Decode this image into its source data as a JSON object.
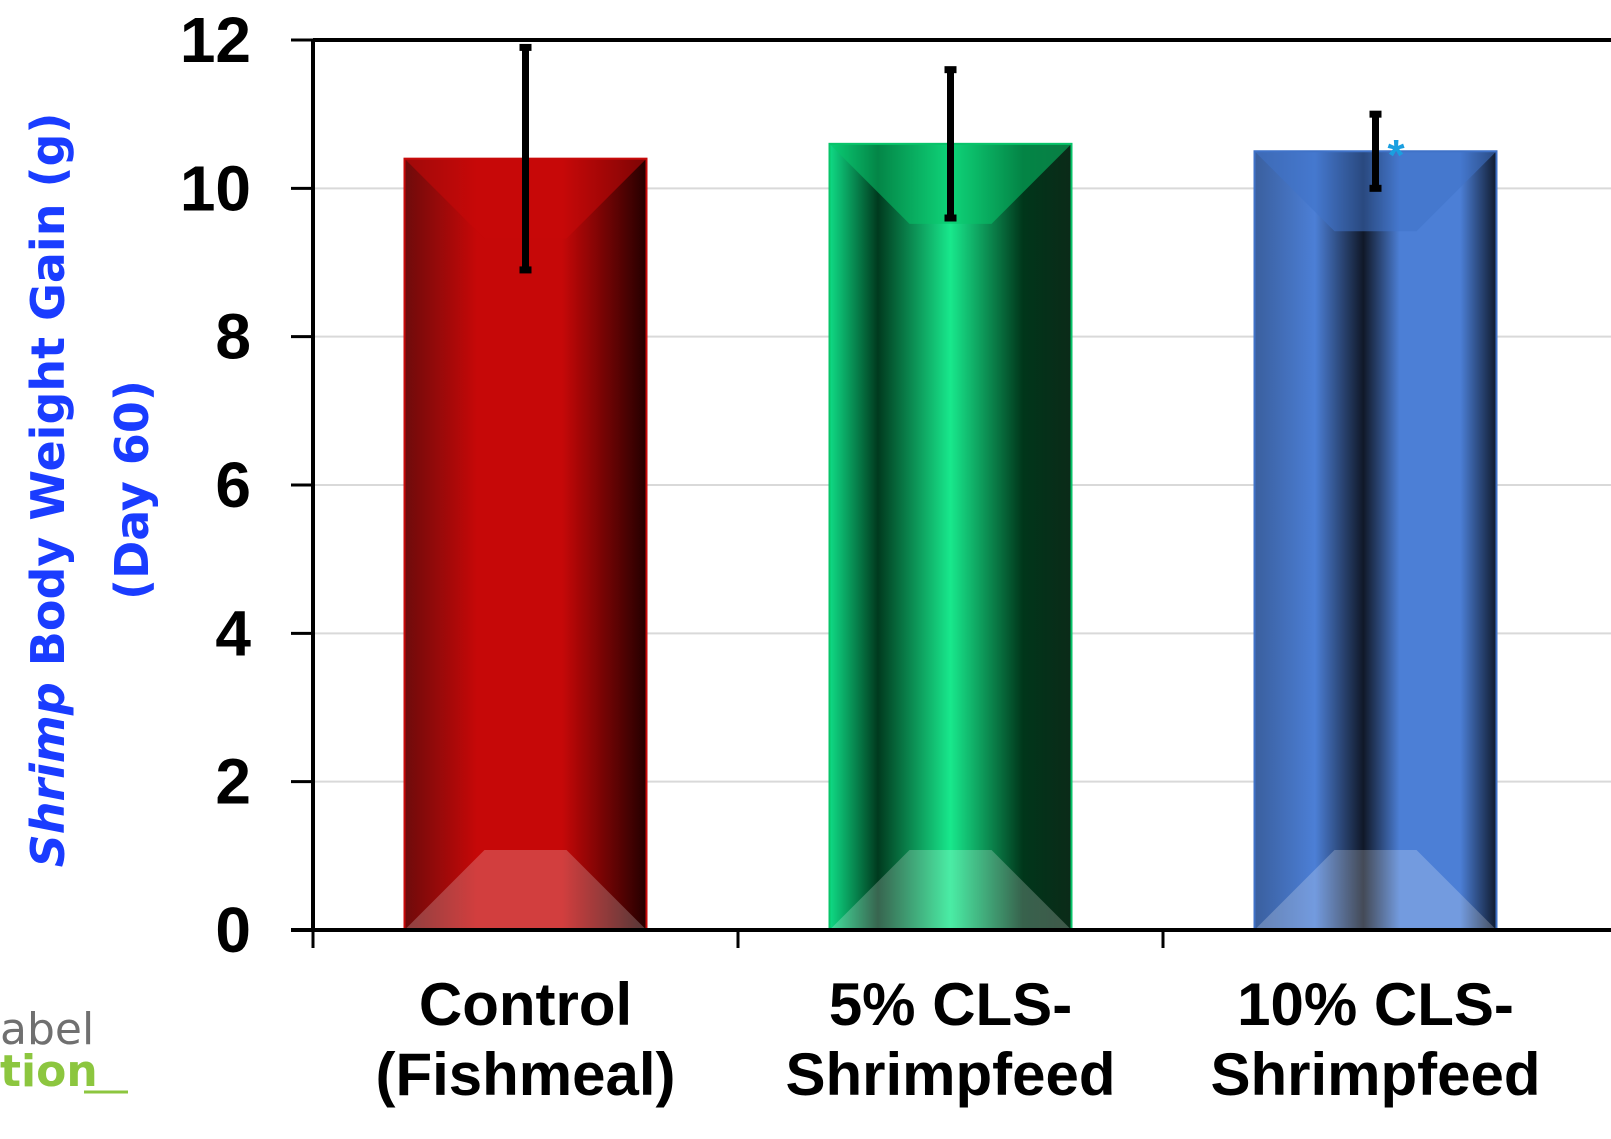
{
  "chart_data": {
    "type": "bar",
    "categories": [
      [
        "Control",
        "(Fishmeal)"
      ],
      [
        "5% CLS-",
        "Shrimpfeed"
      ],
      [
        "10% CLS-",
        "Shrimpfeed"
      ]
    ],
    "values": [
      10.4,
      10.6,
      10.5
    ],
    "error_bars": [
      {
        "upper": 11.9,
        "lower": 8.9
      },
      {
        "upper": 11.6,
        "lower": 9.6
      },
      {
        "upper": 11.0,
        "lower": 10.0
      }
    ],
    "bar_colors": [
      "#c80a0a",
      "#08c46a",
      "#3f72c8"
    ],
    "annotations": [
      "",
      "",
      "*"
    ],
    "ylabel_italic": "Shrimp",
    "ylabel_rest": " Body Weight Gain (g)",
    "ylabel_line2": "(Day 60)",
    "ylim": [
      0,
      12
    ],
    "yticks": [
      "0",
      "2",
      "4",
      "6",
      "8",
      "10",
      "12"
    ],
    "grid": true
  },
  "logo": {
    "line1": "abel",
    "line2": "tion"
  },
  "colors": {
    "ylabel": "#1a3cff",
    "annotation": "#1a9fe0",
    "logo_gray": "#707070",
    "logo_green": "#8cc63f"
  }
}
